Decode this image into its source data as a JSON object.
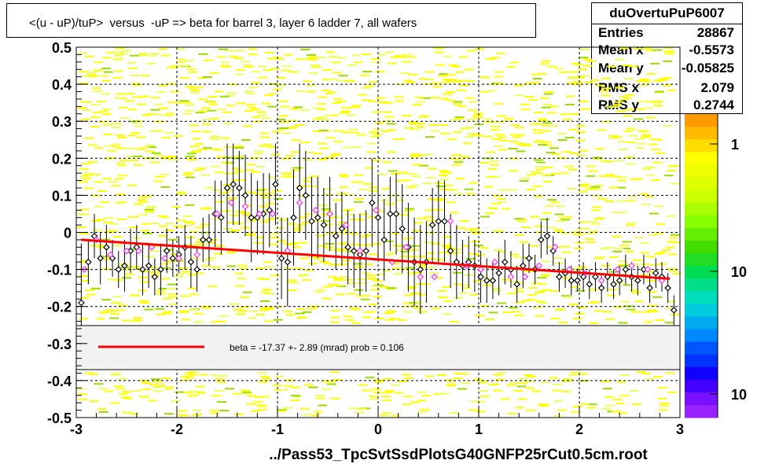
{
  "title": "<(u - uP)/tuP>  versus  -uP => beta for barrel 3, layer 6 ladder 7, all wafers",
  "stats": {
    "name": "duOvertuPuP6007",
    "rows": [
      {
        "key": "Entries",
        "value": "28867"
      },
      {
        "key": "Mean x",
        "value": "-0.5573"
      },
      {
        "key": "Mean y",
        "value": "-0.05825"
      },
      {
        "key": "RMS x",
        "value": "2.079"
      },
      {
        "key": "RMS y",
        "value": "0.2744"
      }
    ]
  },
  "legend_text": "beta =  -17.37 +-  2.89 (mrad) prob = 0.106",
  "xlabel": "../Pass53_TpcSvtSsdPlotsG40GNFP25rCut0.5cm.root",
  "colorbar_labels": [
    "1",
    "10",
    "10"
  ],
  "colors": {
    "fit_line": "#ff0000",
    "points_black": "#000000",
    "points_magenta": "#ff33ff",
    "hist_yellow": "#ffff00",
    "hist_green": "#99dd00"
  },
  "chart_data": {
    "type": "scatter",
    "xlim": [
      -3,
      3
    ],
    "ylim": [
      -0.5,
      0.5
    ],
    "xticks": [
      "-3",
      "-2",
      "-1",
      "0",
      "1",
      "2",
      "3"
    ],
    "yticks": [
      "-0.5",
      "-0.4",
      "-0.3",
      "-0.2",
      "-0.1",
      "0",
      "0.1",
      "0.2",
      "0.3",
      "0.4",
      "0.5"
    ],
    "fit_line": {
      "x": [
        -2.95,
        2.9
      ],
      "y": [
        -0.02,
        -0.125
      ]
    },
    "series": [
      {
        "marker": "black-diamond",
        "x": [
          -2.95,
          -2.88,
          -2.82,
          -2.76,
          -2.7,
          -2.64,
          -2.58,
          -2.52,
          -2.46,
          -2.4,
          -2.34,
          -2.28,
          -2.22,
          -2.16,
          -2.1,
          -2.04,
          -1.98,
          -1.92,
          -1.86,
          -1.8,
          -1.74,
          -1.68,
          -1.62,
          -1.56,
          -1.5,
          -1.44,
          -1.38,
          -1.32,
          -1.26,
          -1.2,
          -1.14,
          -1.08,
          -1.02,
          -0.96,
          -0.9,
          -0.84,
          -0.78,
          -0.72,
          -0.66,
          -0.6,
          -0.54,
          -0.48,
          -0.42,
          -0.36,
          -0.3,
          -0.24,
          -0.18,
          -0.12,
          -0.06,
          0.0,
          0.06,
          0.12,
          0.18,
          0.24,
          0.3,
          0.36,
          0.42,
          0.48,
          0.54,
          0.6,
          0.66,
          0.72,
          0.78,
          0.84,
          0.9,
          0.96,
          1.02,
          1.08,
          1.14,
          1.2,
          1.26,
          1.32,
          1.38,
          1.44,
          1.5,
          1.56,
          1.62,
          1.68,
          1.74,
          1.8,
          1.86,
          1.92,
          1.98,
          2.04,
          2.1,
          2.16,
          2.22,
          2.28,
          2.34,
          2.4,
          2.46,
          2.52,
          2.58,
          2.64,
          2.7,
          2.76,
          2.82,
          2.88,
          2.94
        ],
        "y": [
          -0.19,
          -0.08,
          -0.01,
          -0.07,
          -0.04,
          -0.07,
          -0.1,
          -0.09,
          -0.05,
          -0.04,
          -0.1,
          -0.09,
          -0.12,
          -0.1,
          -0.05,
          -0.07,
          -0.06,
          -0.04,
          -0.08,
          -0.1,
          -0.02,
          -0.02,
          0.05,
          0.04,
          0.12,
          0.13,
          0.12,
          0.1,
          0.04,
          0.04,
          0.05,
          0.06,
          0.13,
          -0.07,
          -0.08,
          0.04,
          0.12,
          0.1,
          0.03,
          0.04,
          0.02,
          0.05,
          -0.01,
          0.01,
          -0.04,
          -0.05,
          -0.06,
          -0.05,
          0.08,
          0.04,
          -0.02,
          0.05,
          0.05,
          0.01,
          -0.04,
          -0.08,
          -0.1,
          -0.08,
          0.02,
          0.03,
          0.03,
          -0.05,
          -0.08,
          -0.09,
          -0.08,
          -0.09,
          -0.12,
          -0.13,
          -0.13,
          -0.11,
          -0.08,
          -0.1,
          -0.14,
          -0.09,
          -0.07,
          -0.1,
          -0.02,
          -0.01,
          -0.05,
          -0.12,
          -0.11,
          -0.13,
          -0.13,
          -0.12,
          -0.14,
          -0.12,
          -0.15,
          -0.12,
          -0.14,
          -0.13,
          -0.1,
          -0.12,
          -0.13,
          -0.1,
          -0.15,
          -0.11,
          -0.12,
          -0.15,
          -0.21
        ],
        "err": [
          0.16,
          0.06,
          0.06,
          0.07,
          0.06,
          0.05,
          0.05,
          0.07,
          0.06,
          0.06,
          0.07,
          0.06,
          0.05,
          0.07,
          0.06,
          0.05,
          0.05,
          0.06,
          0.07,
          0.06,
          0.06,
          0.07,
          0.09,
          0.1,
          0.12,
          0.11,
          0.1,
          0.11,
          0.12,
          0.1,
          0.11,
          0.1,
          0.11,
          0.11,
          0.12,
          0.13,
          0.12,
          0.12,
          0.12,
          0.11,
          0.1,
          0.1,
          0.09,
          0.1,
          0.1,
          0.1,
          0.11,
          0.11,
          0.12,
          0.11,
          0.11,
          0.1,
          0.11,
          0.12,
          0.12,
          0.12,
          0.12,
          0.11,
          0.1,
          0.11,
          0.11,
          0.1,
          0.1,
          0.07,
          0.07,
          0.07,
          0.07,
          0.06,
          0.05,
          0.06,
          0.06,
          0.05,
          0.05,
          0.06,
          0.04,
          0.04,
          0.05,
          0.05,
          0.04,
          0.04,
          0.04,
          0.04,
          0.03,
          0.04,
          0.04,
          0.04,
          0.04,
          0.04,
          0.04,
          0.04,
          0.04,
          0.04,
          0.04,
          0.04,
          0.04,
          0.04,
          0.04,
          0.04,
          0.04
        ]
      },
      {
        "marker": "magenta-diamond",
        "x": [
          -2.92,
          -2.8,
          -2.66,
          -2.5,
          -2.38,
          -2.25,
          -2.12,
          -1.98,
          -1.8,
          -1.6,
          -1.46,
          -1.32,
          -1.18,
          -1.05,
          -0.9,
          -0.78,
          -0.62,
          -0.48,
          -0.32,
          -0.18,
          -0.02,
          0.14,
          0.28,
          0.42,
          0.56,
          0.72,
          0.88,
          1.02,
          1.16,
          1.32,
          1.46,
          1.6,
          1.76,
          1.9,
          2.06,
          2.22,
          2.38,
          2.52,
          2.68,
          2.82
        ],
        "y": [
          -0.1,
          -0.02,
          -0.06,
          -0.05,
          -0.05,
          -0.04,
          -0.07,
          -0.07,
          -0.06,
          0.05,
          0.08,
          0.07,
          0.05,
          0.05,
          -0.05,
          0.08,
          0.06,
          0.05,
          0.02,
          -0.05,
          0.06,
          -0.08,
          -0.04,
          -0.12,
          -0.12,
          0.03,
          -0.09,
          -0.1,
          -0.08,
          -0.12,
          -0.12,
          -0.09,
          -0.04,
          -0.1,
          -0.11,
          -0.13,
          -0.1,
          -0.09,
          -0.1,
          -0.13
        ]
      }
    ]
  }
}
